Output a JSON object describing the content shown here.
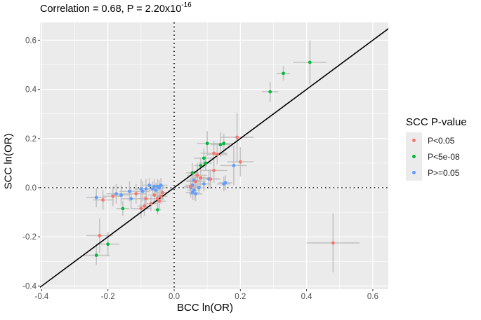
{
  "chart_data": {
    "type": "scatter",
    "title": "Correlation = 0.68, P = 2.20x10^-16",
    "title_parts": {
      "prefix": "Correlation = 0.68, P = 2.20x10",
      "exponent": "-16"
    },
    "xlabel": "BCC ln(OR)",
    "ylabel": "SCC ln(OR)",
    "xlim": [
      -0.4,
      0.65
    ],
    "ylim": [
      -0.4,
      0.65
    ],
    "x_ticks": [
      -0.4,
      -0.2,
      0.0,
      0.2,
      0.4,
      0.6
    ],
    "x_tick_labels": [
      "-0.4",
      "-0.2",
      "0.0",
      "0.2",
      "0.4",
      "0.6"
    ],
    "y_ticks": [
      -0.4,
      -0.2,
      0.0,
      0.2,
      0.4,
      0.6
    ],
    "y_tick_labels": [
      "-0.4",
      "-0.2",
      "0.0",
      "0.2",
      "0.4",
      "0.6"
    ],
    "grid": true,
    "reference_lines": {
      "h": 0,
      "v": 0,
      "style": "dotted",
      "diagonal": "y = x"
    },
    "legend": {
      "title": "SCC P-value",
      "position": "right",
      "entries": [
        {
          "label": "P<0.05",
          "color": "#F8766D"
        },
        {
          "label": "P<5e-08",
          "color": "#00BA38"
        },
        {
          "label": "P>=0.05",
          "color": "#619CFF"
        }
      ]
    },
    "series": [
      {
        "name": "P<5e-08",
        "color": "#00BA38",
        "points": [
          {
            "x": 0.41,
            "y": 0.51,
            "xerr": 0.05,
            "yerr": 0.09
          },
          {
            "x": 0.33,
            "y": 0.465,
            "xerr": 0.02,
            "yerr": 0.03
          },
          {
            "x": 0.29,
            "y": 0.39,
            "xerr": 0.025,
            "yerr": 0.04
          },
          {
            "x": 0.1,
            "y": 0.18,
            "xerr": 0.03,
            "yerr": 0.05
          },
          {
            "x": 0.14,
            "y": 0.175,
            "xerr": 0.03,
            "yerr": 0.05
          },
          {
            "x": 0.15,
            "y": 0.18,
            "xerr": 0.03,
            "yerr": 0.04
          },
          {
            "x": 0.09,
            "y": 0.12,
            "xerr": 0.03,
            "yerr": 0.04
          },
          {
            "x": 0.095,
            "y": 0.1,
            "xerr": 0.02,
            "yerr": 0.03
          },
          {
            "x": 0.055,
            "y": 0.06,
            "xerr": 0.02,
            "yerr": 0.04
          },
          {
            "x": 0.08,
            "y": 0.09,
            "xerr": 0.02,
            "yerr": 0.03
          },
          {
            "x": -0.155,
            "y": -0.085,
            "xerr": 0.02,
            "yerr": 0.03
          },
          {
            "x": -0.05,
            "y": -0.09,
            "xerr": 0.01,
            "yerr": 0.02
          },
          {
            "x": -0.2,
            "y": -0.23,
            "xerr": 0.035,
            "yerr": 0.05
          },
          {
            "x": -0.235,
            "y": -0.275,
            "xerr": 0.04,
            "yerr": 0.04
          }
        ]
      },
      {
        "name": "P<0.05",
        "color": "#F8766D",
        "points": [
          {
            "x": 0.48,
            "y": -0.225,
            "xerr": 0.08,
            "yerr": 0.12
          },
          {
            "x": 0.19,
            "y": 0.205,
            "xerr": 0.05,
            "yerr": 0.1
          },
          {
            "x": 0.2,
            "y": 0.105,
            "xerr": 0.04,
            "yerr": 0.06
          },
          {
            "x": 0.12,
            "y": 0.14,
            "xerr": 0.04,
            "yerr": 0.05
          },
          {
            "x": 0.13,
            "y": 0.135,
            "xerr": 0.03,
            "yerr": 0.04
          },
          {
            "x": 0.12,
            "y": 0.07,
            "xerr": 0.04,
            "yerr": 0.05
          },
          {
            "x": 0.11,
            "y": 0.035,
            "xerr": 0.03,
            "yerr": 0.04
          },
          {
            "x": 0.07,
            "y": 0.05,
            "xerr": 0.03,
            "yerr": 0.05
          },
          {
            "x": 0.08,
            "y": 0.04,
            "xerr": 0.03,
            "yerr": 0.04
          },
          {
            "x": 0.065,
            "y": 0.025,
            "xerr": 0.03,
            "yerr": 0.04
          },
          {
            "x": 0.05,
            "y": 0.005,
            "xerr": 0.02,
            "yerr": 0.03
          },
          {
            "x": -0.035,
            "y": -0.02,
            "xerr": 0.02,
            "yerr": 0.03
          },
          {
            "x": -0.04,
            "y": -0.035,
            "xerr": 0.02,
            "yerr": 0.03
          },
          {
            "x": -0.05,
            "y": -0.045,
            "xerr": 0.02,
            "yerr": 0.03
          },
          {
            "x": -0.045,
            "y": -0.055,
            "xerr": 0.02,
            "yerr": 0.03
          },
          {
            "x": -0.06,
            "y": -0.03,
            "xerr": 0.02,
            "yerr": 0.03
          },
          {
            "x": -0.07,
            "y": -0.065,
            "xerr": 0.02,
            "yerr": 0.03
          },
          {
            "x": -0.085,
            "y": -0.045,
            "xerr": 0.02,
            "yerr": 0.04
          },
          {
            "x": -0.09,
            "y": -0.075,
            "xerr": 0.02,
            "yerr": 0.04
          },
          {
            "x": -0.1,
            "y": -0.085,
            "xerr": 0.03,
            "yerr": 0.04
          },
          {
            "x": -0.115,
            "y": -0.025,
            "xerr": 0.03,
            "yerr": 0.04
          },
          {
            "x": -0.185,
            "y": -0.035,
            "xerr": 0.03,
            "yerr": 0.04
          },
          {
            "x": -0.215,
            "y": -0.05,
            "xerr": 0.03,
            "yerr": 0.04
          },
          {
            "x": -0.225,
            "y": -0.195,
            "xerr": 0.04,
            "yerr": 0.07
          }
        ]
      },
      {
        "name": "P>=0.05",
        "color": "#619CFF",
        "points": [
          {
            "x": 0.18,
            "y": 0.09,
            "xerr": 0.04,
            "yerr": 0.08
          },
          {
            "x": 0.155,
            "y": 0.02,
            "xerr": 0.02,
            "yerr": 0.03
          },
          {
            "x": 0.15,
            "y": 0.015,
            "xerr": 0.02,
            "yerr": 0.03
          },
          {
            "x": 0.105,
            "y": 0.035,
            "xerr": 0.03,
            "yerr": 0.04
          },
          {
            "x": 0.09,
            "y": 0.015,
            "xerr": 0.02,
            "yerr": 0.03
          },
          {
            "x": 0.06,
            "y": 0.03,
            "xerr": 0.02,
            "yerr": 0.04
          },
          {
            "x": 0.055,
            "y": 0.01,
            "xerr": 0.02,
            "yerr": 0.04
          },
          {
            "x": 0.05,
            "y": 0.0,
            "xerr": 0.02,
            "yerr": 0.04
          },
          {
            "x": 0.06,
            "y": -0.01,
            "xerr": 0.02,
            "yerr": 0.04
          },
          {
            "x": 0.055,
            "y": -0.02,
            "xerr": 0.02,
            "yerr": 0.03
          },
          {
            "x": 0.065,
            "y": -0.025,
            "xerr": 0.02,
            "yerr": 0.03
          },
          {
            "x": 0.075,
            "y": 0.0,
            "xerr": 0.02,
            "yerr": 0.03
          },
          {
            "x": -0.04,
            "y": 0.01,
            "xerr": 0.02,
            "yerr": 0.03
          },
          {
            "x": -0.045,
            "y": 0.0,
            "xerr": 0.02,
            "yerr": 0.03
          },
          {
            "x": -0.05,
            "y": 0.005,
            "xerr": 0.02,
            "yerr": 0.03
          },
          {
            "x": -0.055,
            "y": -0.01,
            "xerr": 0.02,
            "yerr": 0.03
          },
          {
            "x": -0.06,
            "y": 0.005,
            "xerr": 0.02,
            "yerr": 0.03
          },
          {
            "x": -0.065,
            "y": -0.005,
            "xerr": 0.02,
            "yerr": 0.03
          },
          {
            "x": -0.075,
            "y": 0.01,
            "xerr": 0.02,
            "yerr": 0.03
          },
          {
            "x": -0.085,
            "y": -0.005,
            "xerr": 0.02,
            "yerr": 0.04
          },
          {
            "x": -0.095,
            "y": -0.015,
            "xerr": 0.02,
            "yerr": 0.04
          },
          {
            "x": -0.1,
            "y": -0.005,
            "xerr": 0.02,
            "yerr": 0.04
          },
          {
            "x": -0.13,
            "y": -0.045,
            "xerr": 0.03,
            "yerr": 0.04
          },
          {
            "x": -0.135,
            "y": -0.015,
            "xerr": 0.03,
            "yerr": 0.04
          },
          {
            "x": -0.16,
            "y": -0.03,
            "xerr": 0.03,
            "yerr": 0.04
          },
          {
            "x": -0.175,
            "y": -0.025,
            "xerr": 0.03,
            "yerr": 0.04
          },
          {
            "x": -0.235,
            "y": -0.04,
            "xerr": 0.03,
            "yerr": 0.04
          }
        ]
      }
    ]
  }
}
